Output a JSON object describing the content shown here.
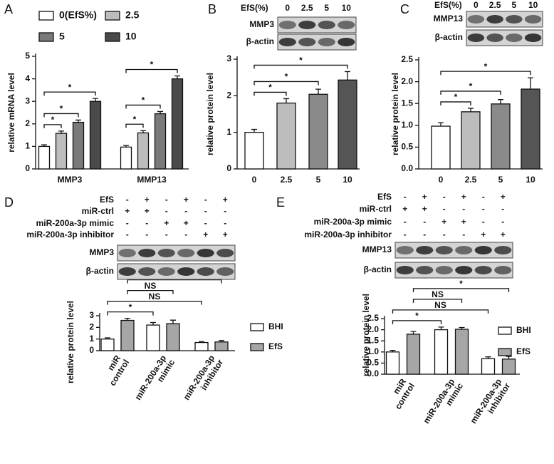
{
  "chart_data": [
    {
      "type": "bar",
      "panel": "A",
      "ylabel": "relative mRNA level",
      "legend": "top",
      "categories": [
        "MMP3",
        "MMP13"
      ],
      "series": [
        {
          "name": "0(EfS%)",
          "color": "#ffffff",
          "values": [
            1.0,
            0.97
          ],
          "errors": [
            0.07,
            0.07
          ]
        },
        {
          "name": "2.5",
          "color": "#bdbdbd",
          "values": [
            1.58,
            1.6
          ],
          "errors": [
            0.1,
            0.1
          ]
        },
        {
          "name": "5",
          "color": "#7a7a7a",
          "values": [
            2.07,
            2.45
          ],
          "errors": [
            0.1,
            0.1
          ]
        },
        {
          "name": "10",
          "color": "#4a4a4a",
          "values": [
            3.0,
            4.0
          ],
          "errors": [
            0.13,
            0.13
          ]
        }
      ],
      "ylim": [
        0,
        5
      ],
      "yticks": [
        0,
        1,
        2,
        3,
        4,
        5
      ],
      "brackets": [
        {
          "label": "*",
          "from": [
            0,
            0
          ],
          "to": [
            0,
            1
          ]
        },
        {
          "label": "*",
          "from": [
            0,
            0
          ],
          "to": [
            0,
            2
          ]
        },
        {
          "label": "*",
          "from": [
            0,
            0
          ],
          "to": [
            0,
            3
          ]
        },
        {
          "label": "*",
          "from": [
            1,
            0
          ],
          "to": [
            1,
            1
          ]
        },
        {
          "label": "*",
          "from": [
            1,
            0
          ],
          "to": [
            1,
            2
          ]
        },
        {
          "label": "*",
          "from": [
            1,
            0
          ],
          "to": [
            1,
            3
          ]
        }
      ]
    },
    {
      "type": "bar",
      "panel": "B",
      "ylabel": "relative protein level",
      "blot": {
        "header": "EfS(%)",
        "lanes": [
          "0",
          "2.5",
          "5",
          "10"
        ],
        "rows": [
          "MMP3",
          "β-actin"
        ]
      },
      "categories": [
        "0",
        "2.5",
        "5",
        "10"
      ],
      "series": [
        {
          "colors": [
            "#ffffff",
            "#bdbdbd",
            "#8a8a8a",
            "#555555"
          ],
          "values": [
            1.0,
            1.8,
            2.04,
            2.43
          ],
          "errors": [
            0.08,
            0.12,
            0.14,
            0.23
          ]
        }
      ],
      "ylim": [
        0,
        3
      ],
      "yticks": [
        0,
        1,
        2,
        3
      ],
      "brackets": [
        {
          "label": "*",
          "from": [
            0,
            0
          ],
          "to": [
            1,
            0
          ]
        },
        {
          "label": "*",
          "from": [
            0,
            0
          ],
          "to": [
            2,
            0
          ]
        },
        {
          "label": "*",
          "from": [
            0,
            0
          ],
          "to": [
            3,
            0
          ]
        }
      ]
    },
    {
      "type": "bar",
      "panel": "C",
      "ylabel": "relative protein level",
      "blot": {
        "header": "EfS(%)",
        "lanes": [
          "0",
          "2.5",
          "5",
          "10"
        ],
        "rows": [
          "MMP13",
          "β-actin"
        ]
      },
      "categories": [
        "0",
        "2.5",
        "5",
        "10"
      ],
      "series": [
        {
          "colors": [
            "#ffffff",
            "#bdbdbd",
            "#8a8a8a",
            "#555555"
          ],
          "values": [
            0.98,
            1.31,
            1.49,
            1.83
          ],
          "errors": [
            0.08,
            0.08,
            0.1,
            0.26
          ]
        }
      ],
      "ylim": [
        0,
        2.5
      ],
      "yticks": [
        {
          "value": 0,
          "label": "0.0"
        },
        {
          "value": 0.5,
          "label": "0.5"
        },
        {
          "value": 1,
          "label": "1.0"
        },
        {
          "value": 1.5,
          "label": "1.5"
        },
        {
          "value": 2,
          "label": "2.0"
        },
        {
          "value": 2.5,
          "label": "2.5"
        }
      ],
      "brackets": [
        {
          "label": "*",
          "from": [
            0,
            0
          ],
          "to": [
            1,
            0
          ]
        },
        {
          "label": "*",
          "from": [
            0,
            0
          ],
          "to": [
            2,
            0
          ]
        },
        {
          "label": "*",
          "from": [
            0,
            0
          ],
          "to": [
            3,
            0
          ]
        }
      ]
    },
    {
      "type": "bar",
      "panel": "D",
      "ylabel": "relative protein level",
      "legend": "right",
      "conditions": [
        {
          "label": "EfS",
          "signs": [
            "-",
            "+",
            "-",
            "+",
            "-",
            "+"
          ]
        },
        {
          "label": "miR-ctrl",
          "signs": [
            "+",
            "+",
            "-",
            "-",
            "-",
            "-"
          ]
        },
        {
          "label": "miR-200a-3p  mimic",
          "signs": [
            "-",
            "-",
            "+",
            "+",
            "-",
            "-"
          ]
        },
        {
          "label": "miR-200a-3p inhibitor",
          "signs": [
            "-",
            "-",
            "-",
            "-",
            "+",
            "+"
          ]
        }
      ],
      "blot": {
        "rows": [
          "MMP3",
          "β-actin"
        ]
      },
      "categories": [
        [
          "miR",
          "control"
        ],
        [
          "miR-200a-3p",
          "mimic"
        ],
        [
          "miR-200a-3p",
          "inhibitor"
        ]
      ],
      "series": [
        {
          "name": "BHI",
          "color": "#ffffff",
          "values": [
            1.0,
            2.2,
            0.7
          ],
          "errors": [
            0.1,
            0.22,
            0.08
          ]
        },
        {
          "name": "EfS",
          "color": "#a6a6a6",
          "values": [
            2.6,
            2.32,
            0.75
          ],
          "errors": [
            0.18,
            0.3,
            0.12
          ]
        }
      ],
      "ylim": [
        0,
        3
      ],
      "yticks": [
        0,
        1,
        2,
        3
      ],
      "brackets": [
        {
          "label": "*",
          "from": [
            0,
            0
          ],
          "to": [
            1,
            0
          ]
        },
        {
          "label": "NS",
          "from": [
            0,
            0
          ],
          "to": [
            2,
            0
          ]
        },
        {
          "label": "NS",
          "from": [
            0,
            1
          ],
          "to": [
            1,
            1
          ]
        },
        {
          "label": "*",
          "from": [
            0,
            1
          ],
          "to": [
            2,
            1
          ]
        }
      ]
    },
    {
      "type": "bar",
      "panel": "E",
      "ylabel": "relative protein level",
      "legend": "right",
      "conditions": [
        {
          "label": "EfS",
          "signs": [
            "-",
            "+",
            "-",
            "+",
            "-",
            "+"
          ]
        },
        {
          "label": "miR-ctrl",
          "signs": [
            "+",
            "+",
            "-",
            "-",
            "-",
            "-"
          ]
        },
        {
          "label": "miR-200a-3p  mimic",
          "signs": [
            "-",
            "-",
            "+",
            "+",
            "-",
            "-"
          ]
        },
        {
          "label": "miR-200a-3p inhibitor",
          "signs": [
            "-",
            "-",
            "-",
            "-",
            "+",
            "+"
          ]
        }
      ],
      "blot": {
        "rows": [
          "MMP13",
          "β-actin"
        ]
      },
      "categories": [
        [
          "miR",
          "control"
        ],
        [
          "miR-200a-3p",
          "mimic"
        ],
        [
          "miR-200a-3p",
          "inhibitor"
        ]
      ],
      "series": [
        {
          "name": "BHI",
          "color": "#ffffff",
          "values": [
            1.0,
            2.0,
            0.7
          ],
          "errors": [
            0.07,
            0.12,
            0.08
          ]
        },
        {
          "name": "EfS",
          "color": "#a6a6a6",
          "values": [
            1.8,
            2.02,
            0.68
          ],
          "errors": [
            0.12,
            0.08,
            0.12
          ]
        }
      ],
      "ylim": [
        0,
        2.5
      ],
      "yticks": [
        {
          "value": 0,
          "label": "0.0"
        },
        {
          "value": 0.5,
          "label": "0.5"
        },
        {
          "value": 1,
          "label": "1.0"
        },
        {
          "value": 1.5,
          "label": "1.5"
        },
        {
          "value": 2,
          "label": "2.0"
        },
        {
          "value": 2.5,
          "label": "2.5"
        }
      ],
      "brackets": [
        {
          "label": "*",
          "from": [
            0,
            0
          ],
          "to": [
            1,
            0
          ]
        },
        {
          "label": "NS",
          "from": [
            0,
            0
          ],
          "to": [
            2,
            0
          ]
        },
        {
          "label": "NS",
          "from": [
            0,
            1
          ],
          "to": [
            1,
            1
          ]
        },
        {
          "label": "*",
          "from": [
            0,
            1
          ],
          "to": [
            2,
            1
          ]
        }
      ]
    }
  ]
}
